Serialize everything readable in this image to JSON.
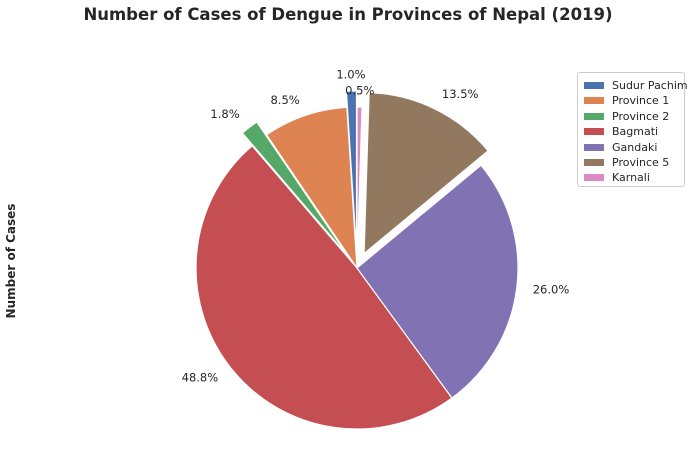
{
  "chart_data": {
    "type": "pie",
    "title": "Number of Cases of Dengue in Provinces of Nepal (2019)",
    "ylabel": "Number of Cases",
    "slices": [
      {
        "label": "Sudur Pachim",
        "percent": 1.0,
        "label_text": "1.0%",
        "color": "#4c72b0",
        "explode": 0.1
      },
      {
        "label": "Province 1",
        "percent": 8.5,
        "label_text": "8.5%",
        "color": "#dd8452",
        "explode": 0.0
      },
      {
        "label": "Province 2",
        "percent": 1.8,
        "label_text": "1.8%",
        "color": "#55a868",
        "explode": 0.1
      },
      {
        "label": "Bagmati",
        "percent": 48.8,
        "label_text": "48.8%",
        "color": "#c44e52",
        "explode": 0.0
      },
      {
        "label": "Gandaki",
        "percent": 26.0,
        "label_text": "26.0%",
        "color": "#8172b3",
        "explode": 0.0
      },
      {
        "label": "Province 5",
        "percent": 13.5,
        "label_text": "13.5%",
        "color": "#937860",
        "explode": 0.1
      },
      {
        "label": "Karnali",
        "percent": 0.5,
        "label_text": "0.5%",
        "color": "#da8bc3",
        "explode": 0.0
      }
    ],
    "start_angle_deg": 90,
    "direction": "counterclockwise",
    "legend_position": "top-right"
  }
}
